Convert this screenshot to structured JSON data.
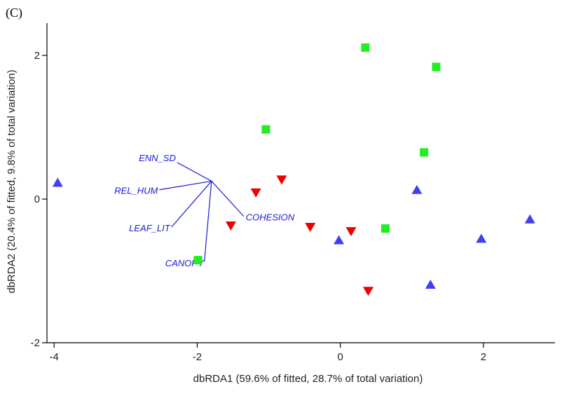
{
  "chart_data": {
    "type": "scatter",
    "panel_label": "(C)",
    "xlabel": "dbRDA1 (59.6% of fitted, 28.7% of total variation)",
    "ylabel": "dbRDA2 (20.4% of fitted, 9.8% of total variation)",
    "xlim": [
      -4.1,
      3.0
    ],
    "ylim": [
      -2.0,
      2.45
    ],
    "xticks": [
      -4,
      -2,
      0,
      2
    ],
    "xtick_labels": [
      "-4",
      "-2",
      "0",
      "2"
    ],
    "yticks": [
      -2,
      0,
      2
    ],
    "ytick_labels": [
      "-2",
      "0",
      "2"
    ],
    "series": [
      {
        "name": "group-up-triangle",
        "marker": "triangle-up",
        "color": "#4040ee",
        "points": [
          {
            "x": -3.95,
            "y": 0.23
          },
          {
            "x": -0.02,
            "y": -0.57
          },
          {
            "x": 1.07,
            "y": 0.13
          },
          {
            "x": 1.26,
            "y": -1.19
          },
          {
            "x": 1.97,
            "y": -0.55
          },
          {
            "x": 2.65,
            "y": -0.28
          }
        ]
      },
      {
        "name": "group-down-triangle",
        "marker": "triangle-down",
        "color": "#ee0000",
        "points": [
          {
            "x": -1.53,
            "y": -0.37
          },
          {
            "x": -1.18,
            "y": 0.09
          },
          {
            "x": -0.82,
            "y": 0.27
          },
          {
            "x": -0.42,
            "y": -0.39
          },
          {
            "x": 0.15,
            "y": -0.45
          },
          {
            "x": 0.39,
            "y": -1.28
          }
        ]
      },
      {
        "name": "group-square",
        "marker": "square",
        "color": "#22ee22",
        "points": [
          {
            "x": -1.99,
            "y": -0.85
          },
          {
            "x": -1.04,
            "y": 0.97
          },
          {
            "x": 0.35,
            "y": 2.11
          },
          {
            "x": 0.63,
            "y": -0.41
          },
          {
            "x": 1.17,
            "y": 0.65
          },
          {
            "x": 1.34,
            "y": 1.84
          }
        ]
      }
    ],
    "vectors": {
      "color": "#1a1adb",
      "origin": {
        "x": -1.8,
        "y": 0.25
      },
      "items": [
        {
          "label": "ENN_SD",
          "end": {
            "x": -2.28,
            "y": 0.51
          }
        },
        {
          "label": "REL_HUM",
          "end": {
            "x": -2.53,
            "y": 0.13
          }
        },
        {
          "label": "LEAF_LIT",
          "end": {
            "x": -2.36,
            "y": -0.39
          }
        },
        {
          "label": "CANOPY",
          "end": {
            "x": -1.9,
            "y": -0.87
          }
        },
        {
          "label": "COHESION",
          "end": {
            "x": -1.35,
            "y": -0.24
          }
        }
      ]
    }
  }
}
